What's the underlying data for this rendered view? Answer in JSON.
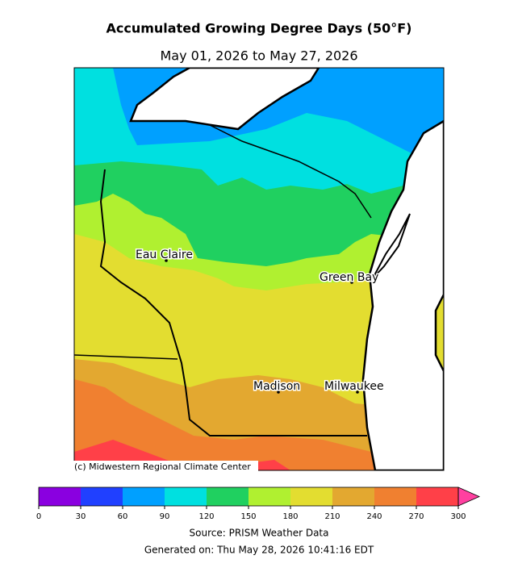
{
  "title": "Accumulated Growing Degree Days (50°F)",
  "subtitle": "May 01, 2026 to May 27, 2026",
  "map": {
    "cities": [
      "Eau Claire",
      "Green Bay",
      "Madison",
      "Milwaukee"
    ],
    "credit": "(c) Midwestern Regional Climate Center"
  },
  "colorbar": {
    "ticks": [
      0,
      30,
      60,
      90,
      120,
      150,
      180,
      210,
      240,
      270,
      300
    ],
    "colors": [
      "#8a00e0",
      "#2040ff",
      "#00a0ff",
      "#00e0e0",
      "#20d060",
      "#b0f030",
      "#e3dd30",
      "#e3a830",
      "#f08030",
      "#ff4048"
    ],
    "over_color": "#ff40a0"
  },
  "source": "Source: PRISM Weather Data",
  "generated": "Generated on: Thu May 28, 2026 10:41:16 EDT"
}
